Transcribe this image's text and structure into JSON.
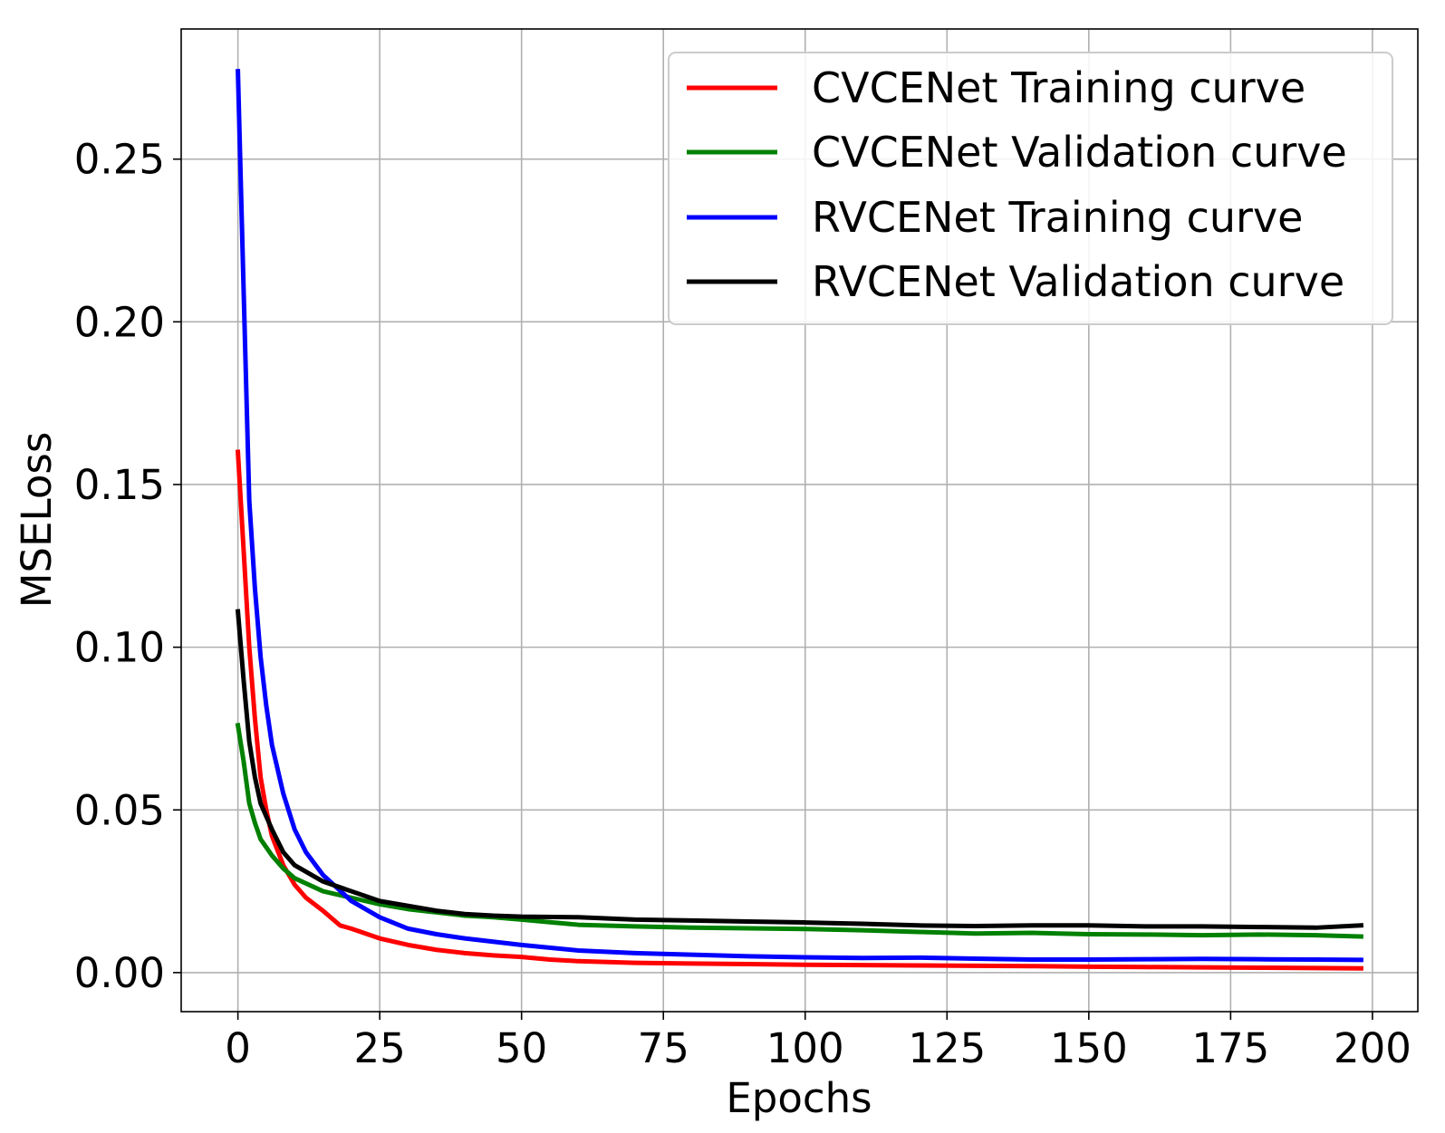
{
  "chart_data": {
    "type": "line",
    "title": "",
    "xlabel": "Epochs",
    "ylabel": "MSELoss",
    "xlim": [
      -10,
      208
    ],
    "ylim": [
      -0.012,
      0.29
    ],
    "grid": true,
    "legend_position": "upper-right",
    "x_ticks": [
      0,
      25,
      50,
      75,
      100,
      125,
      150,
      175,
      200
    ],
    "x_tick_labels": [
      "0",
      "25",
      "50",
      "75",
      "100",
      "125",
      "150",
      "175",
      "200"
    ],
    "y_ticks": [
      0.0,
      0.05,
      0.1,
      0.15,
      0.2,
      0.25
    ],
    "y_tick_labels": [
      "0.00",
      "0.05",
      "0.10",
      "0.15",
      "0.20",
      "0.25"
    ],
    "series": [
      {
        "name": "CVCENet Training curve",
        "color": "#ff0000",
        "x": [
          0,
          1,
          2,
          3,
          4,
          5,
          6,
          8,
          10,
          12,
          15,
          18,
          20,
          25,
          30,
          35,
          40,
          45,
          50,
          55,
          60,
          70,
          80,
          90,
          100,
          110,
          120,
          130,
          140,
          150,
          160,
          170,
          180,
          190,
          198
        ],
        "y": [
          0.16,
          0.13,
          0.1,
          0.078,
          0.06,
          0.05,
          0.042,
          0.033,
          0.027,
          0.023,
          0.019,
          0.0145,
          0.0135,
          0.0105,
          0.0085,
          0.007,
          0.006,
          0.0053,
          0.0048,
          0.004,
          0.0035,
          0.003,
          0.0028,
          0.0026,
          0.0024,
          0.0023,
          0.0022,
          0.0021,
          0.002,
          0.0018,
          0.0017,
          0.0016,
          0.0015,
          0.0014,
          0.0013
        ]
      },
      {
        "name": "CVCENet Validation curve",
        "color": "#008000",
        "x": [
          0,
          1,
          2,
          3,
          4,
          6,
          8,
          10,
          15,
          20,
          25,
          30,
          35,
          40,
          45,
          50,
          55,
          60,
          70,
          80,
          90,
          100,
          110,
          120,
          130,
          140,
          150,
          160,
          170,
          180,
          190,
          198
        ],
        "y": [
          0.076,
          0.065,
          0.052,
          0.046,
          0.041,
          0.036,
          0.032,
          0.029,
          0.025,
          0.023,
          0.021,
          0.0195,
          0.0185,
          0.0175,
          0.017,
          0.0163,
          0.0155,
          0.0147,
          0.0142,
          0.0138,
          0.0136,
          0.0134,
          0.013,
          0.0125,
          0.012,
          0.0122,
          0.0118,
          0.0117,
          0.0115,
          0.0117,
          0.0115,
          0.0111
        ]
      },
      {
        "name": "RVCENet Training curve",
        "color": "#0000ff",
        "x": [
          0,
          1,
          2,
          3,
          4,
          5,
          6,
          8,
          10,
          12,
          15,
          20,
          25,
          30,
          35,
          40,
          45,
          50,
          60,
          70,
          80,
          90,
          100,
          110,
          120,
          130,
          140,
          150,
          160,
          170,
          180,
          190,
          198
        ],
        "y": [
          0.277,
          0.21,
          0.145,
          0.118,
          0.097,
          0.082,
          0.07,
          0.055,
          0.044,
          0.037,
          0.03,
          0.022,
          0.017,
          0.0135,
          0.0118,
          0.0105,
          0.0095,
          0.0085,
          0.0068,
          0.006,
          0.0055,
          0.005,
          0.0047,
          0.0045,
          0.0046,
          0.0043,
          0.004,
          0.004,
          0.0041,
          0.0042,
          0.0041,
          0.004,
          0.0039
        ]
      },
      {
        "name": "RVCENet Validation curve",
        "color": "#000000",
        "x": [
          0,
          1,
          2,
          3,
          4,
          6,
          8,
          10,
          15,
          20,
          25,
          30,
          35,
          40,
          45,
          50,
          60,
          70,
          80,
          90,
          100,
          110,
          120,
          130,
          140,
          150,
          160,
          170,
          180,
          190,
          198
        ],
        "y": [
          0.111,
          0.09,
          0.071,
          0.06,
          0.052,
          0.044,
          0.037,
          0.033,
          0.028,
          0.025,
          0.022,
          0.0205,
          0.019,
          0.018,
          0.0175,
          0.0172,
          0.017,
          0.0163,
          0.016,
          0.0157,
          0.0154,
          0.015,
          0.0145,
          0.0143,
          0.0145,
          0.0145,
          0.0142,
          0.0142,
          0.014,
          0.0138,
          0.0145
        ]
      }
    ]
  }
}
